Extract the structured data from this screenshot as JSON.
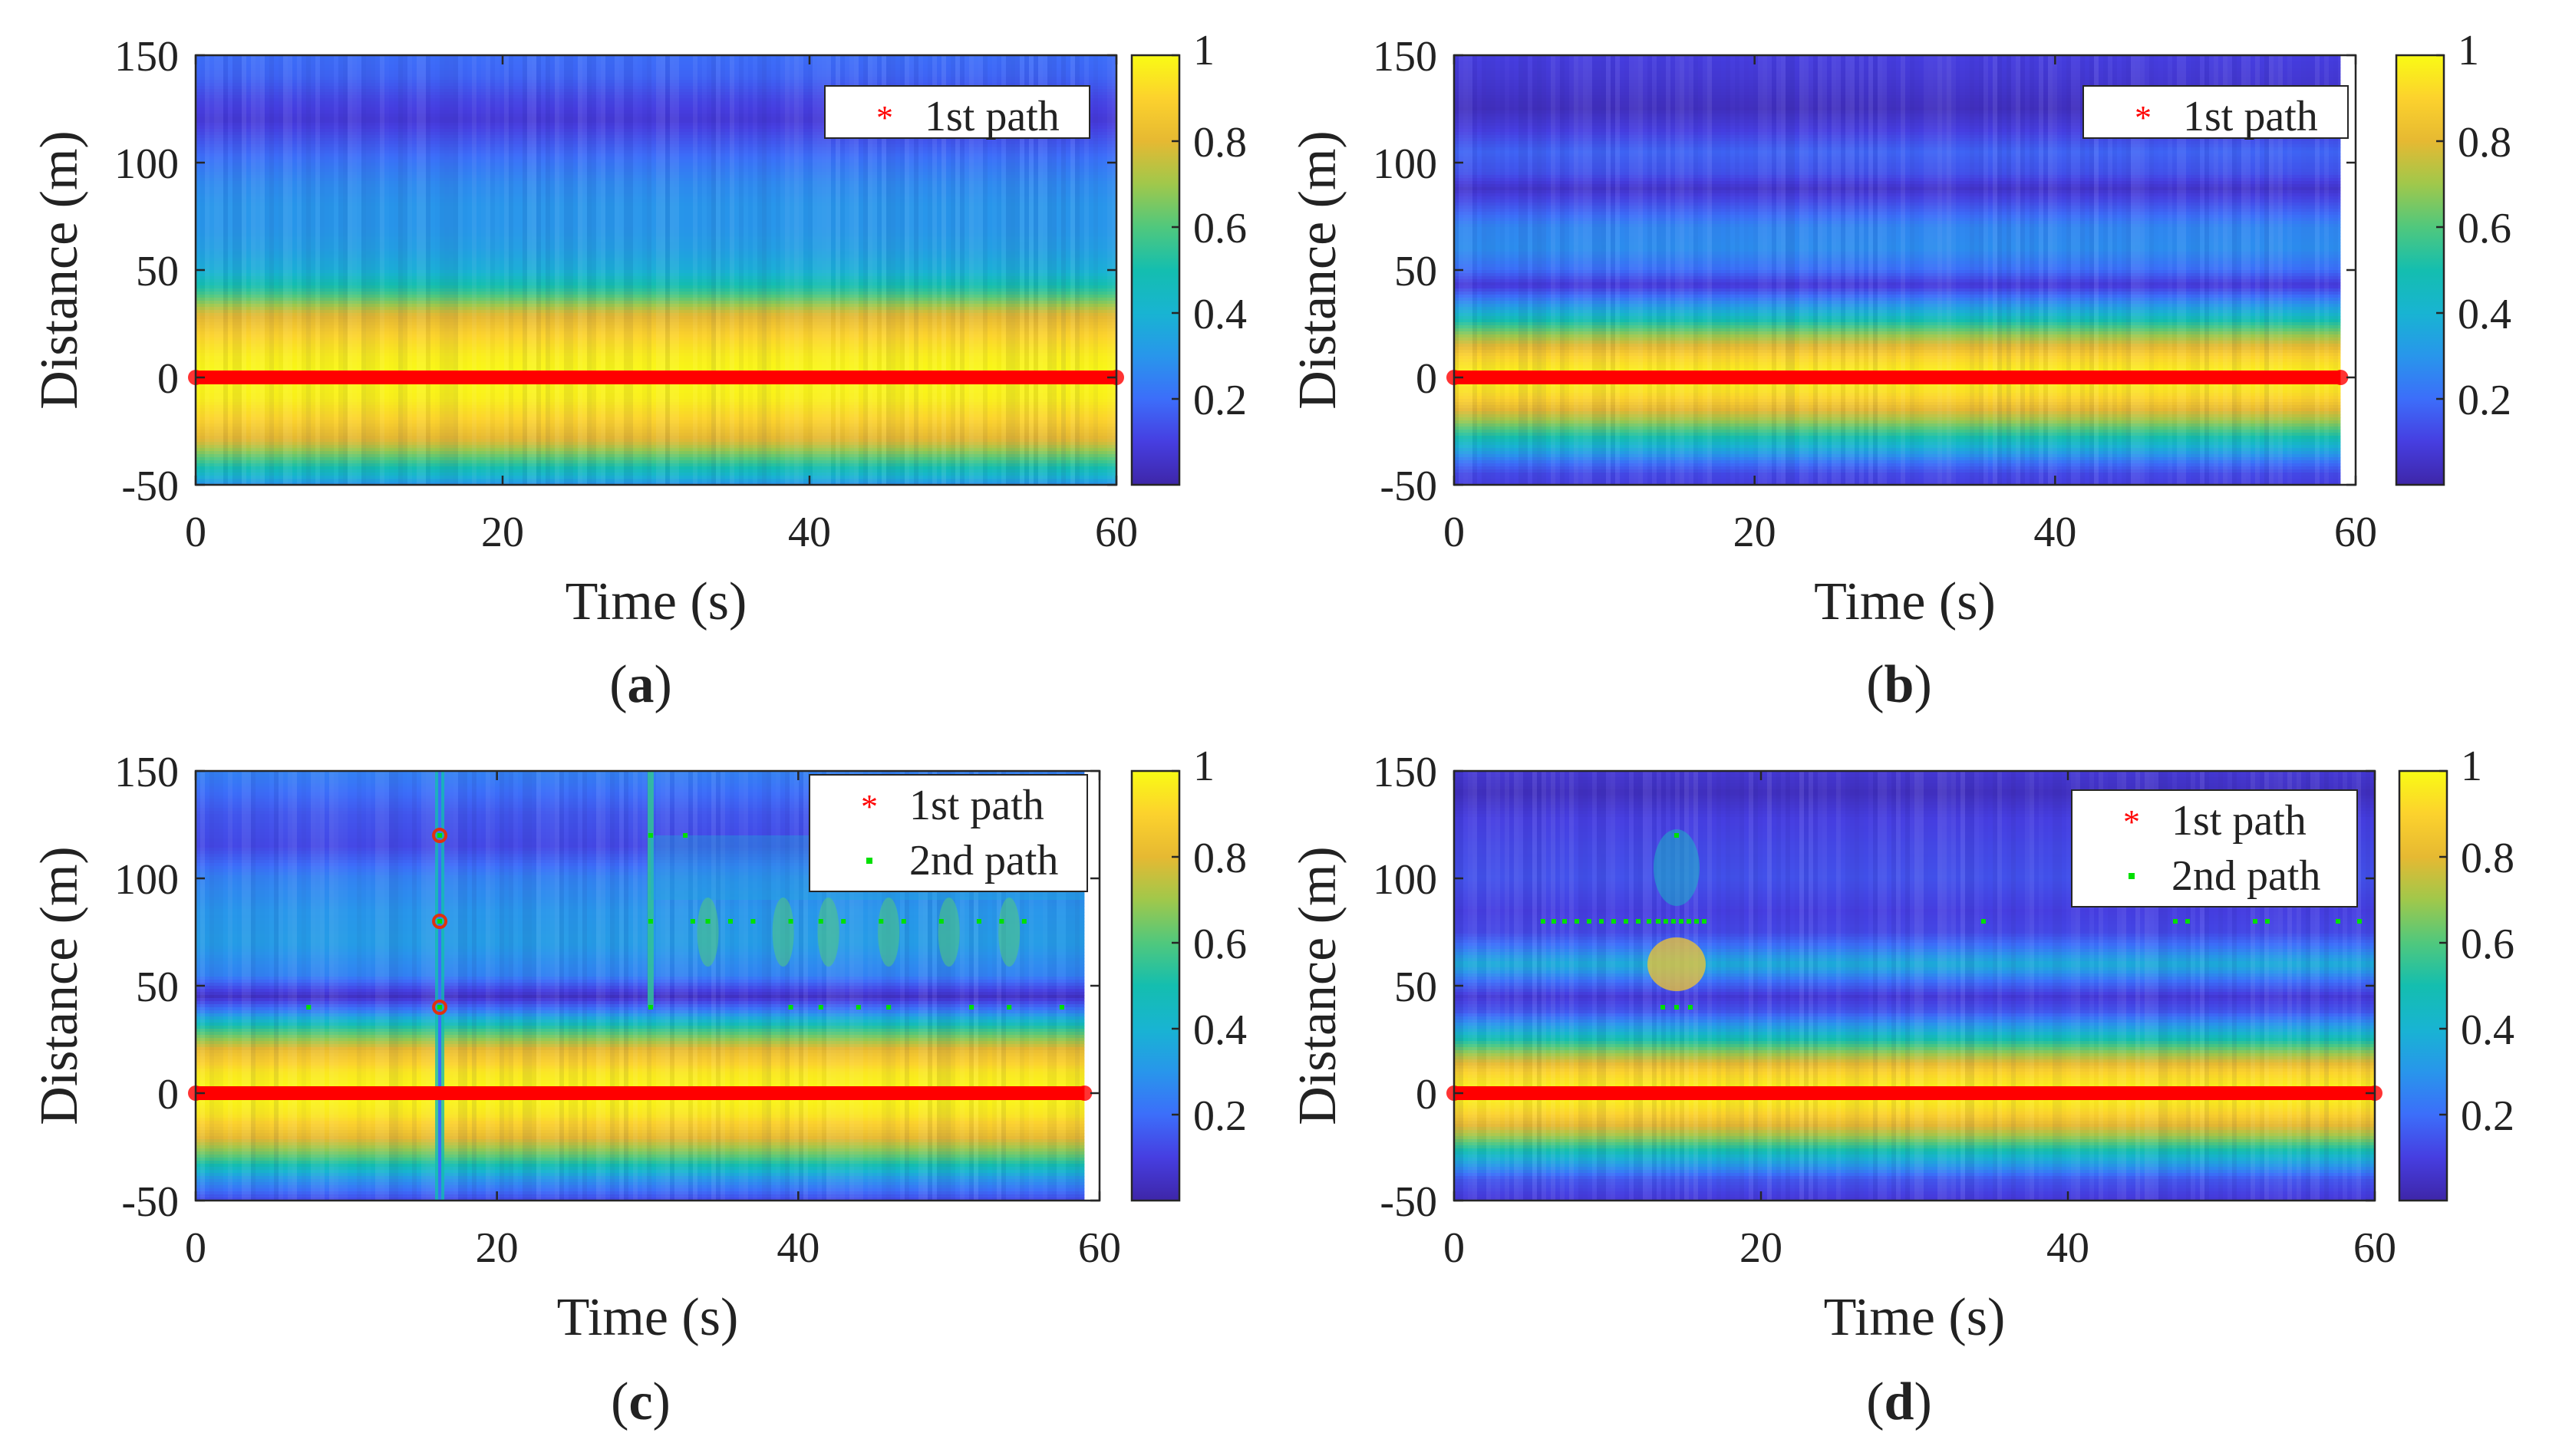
{
  "figure": {
    "bg": "#ffffff"
  },
  "chart_data": [
    {
      "id": "a",
      "type": "heatmap",
      "panel_label": "a",
      "xlabel": "Time (s)",
      "ylabel": "Distance (m)",
      "xlim": [
        0,
        60
      ],
      "ylim": [
        -50,
        150
      ],
      "xticks": [
        0,
        20,
        40,
        60
      ],
      "yticks": [
        -50,
        0,
        50,
        100,
        150
      ],
      "colorbar": {
        "range": [
          0,
          1
        ],
        "ticks": [
          0.2,
          0.4,
          0.6,
          0.8,
          1
        ],
        "tick_labels": [
          "0.2",
          "0.4",
          "0.6",
          "0.8",
          "1"
        ]
      },
      "intensity_profile": [
        {
          "d": -50,
          "v": 0.3
        },
        {
          "d": -40,
          "v": 0.55
        },
        {
          "d": -30,
          "v": 0.78
        },
        {
          "d": -20,
          "v": 0.9
        },
        {
          "d": -10,
          "v": 0.97
        },
        {
          "d": 0,
          "v": 1.0
        },
        {
          "d": 10,
          "v": 0.97
        },
        {
          "d": 20,
          "v": 0.9
        },
        {
          "d": 30,
          "v": 0.78
        },
        {
          "d": 40,
          "v": 0.55
        },
        {
          "d": 50,
          "v": 0.38
        },
        {
          "d": 60,
          "v": 0.33
        },
        {
          "d": 70,
          "v": 0.3
        },
        {
          "d": 80,
          "v": 0.3
        },
        {
          "d": 90,
          "v": 0.27
        },
        {
          "d": 100,
          "v": 0.22
        },
        {
          "d": 110,
          "v": 0.15
        },
        {
          "d": 120,
          "v": 0.08
        },
        {
          "d": 130,
          "v": 0.12
        },
        {
          "d": 140,
          "v": 0.18
        },
        {
          "d": 150,
          "v": 0.2
        }
      ],
      "time_span": [
        0,
        60
      ],
      "anomalies": [],
      "legend": [
        {
          "name": "1st path",
          "marker": "*",
          "color": "#ff0000"
        }
      ],
      "series": [
        {
          "name": "1st path",
          "marker": "*",
          "color": "#ff0000",
          "y_constant": 0,
          "x_range": [
            0,
            60
          ]
        }
      ]
    },
    {
      "id": "b",
      "type": "heatmap",
      "panel_label": "b",
      "xlabel": "Time (s)",
      "ylabel": "Distance (m)",
      "xlim": [
        0,
        60
      ],
      "ylim": [
        -50,
        150
      ],
      "xticks": [
        0,
        20,
        40,
        60
      ],
      "yticks": [
        -50,
        0,
        50,
        100,
        150
      ],
      "colorbar": {
        "range": [
          0,
          1
        ],
        "ticks": [
          0.2,
          0.4,
          0.6,
          0.8,
          1
        ],
        "tick_labels": [
          "0.2",
          "0.4",
          "0.6",
          "0.8",
          "1"
        ]
      },
      "intensity_profile": [
        {
          "d": -50,
          "v": 0.1
        },
        {
          "d": -45,
          "v": 0.12
        },
        {
          "d": -40,
          "v": 0.2
        },
        {
          "d": -30,
          "v": 0.45
        },
        {
          "d": -20,
          "v": 0.7
        },
        {
          "d": -10,
          "v": 0.9
        },
        {
          "d": 0,
          "v": 1.0
        },
        {
          "d": 10,
          "v": 0.9
        },
        {
          "d": 20,
          "v": 0.68
        },
        {
          "d": 30,
          "v": 0.4
        },
        {
          "d": 37,
          "v": 0.22
        },
        {
          "d": 43,
          "v": 0.08
        },
        {
          "d": 50,
          "v": 0.2
        },
        {
          "d": 60,
          "v": 0.28
        },
        {
          "d": 70,
          "v": 0.26
        },
        {
          "d": 80,
          "v": 0.15
        },
        {
          "d": 88,
          "v": 0.06
        },
        {
          "d": 95,
          "v": 0.14
        },
        {
          "d": 105,
          "v": 0.18
        },
        {
          "d": 115,
          "v": 0.1
        },
        {
          "d": 125,
          "v": 0.04
        },
        {
          "d": 140,
          "v": 0.08
        },
        {
          "d": 150,
          "v": 0.1
        }
      ],
      "time_span": [
        0,
        59
      ],
      "anomalies": [],
      "legend": [
        {
          "name": "1st path",
          "marker": "*",
          "color": "#ff0000"
        }
      ],
      "series": [
        {
          "name": "1st path",
          "marker": "*",
          "color": "#ff0000",
          "y_constant": 0,
          "x_range": [
            0,
            59
          ]
        }
      ]
    },
    {
      "id": "c",
      "type": "heatmap",
      "panel_label": "c",
      "xlabel": "Time (s)",
      "ylabel": "Distance (m)",
      "xlim": [
        0,
        60
      ],
      "ylim": [
        -50,
        150
      ],
      "xticks": [
        0,
        20,
        40,
        60
      ],
      "yticks": [
        -50,
        0,
        50,
        100,
        150
      ],
      "colorbar": {
        "range": [
          0,
          1
        ],
        "ticks": [
          0.2,
          0.4,
          0.6,
          0.8,
          1
        ],
        "tick_labels": [
          "0.2",
          "0.4",
          "0.6",
          "0.8",
          "1"
        ]
      },
      "intensity_profile": [
        {
          "d": -50,
          "v": 0.12
        },
        {
          "d": -40,
          "v": 0.3
        },
        {
          "d": -30,
          "v": 0.6
        },
        {
          "d": -20,
          "v": 0.82
        },
        {
          "d": -10,
          "v": 0.95
        },
        {
          "d": 0,
          "v": 1.0
        },
        {
          "d": 10,
          "v": 0.95
        },
        {
          "d": 20,
          "v": 0.82
        },
        {
          "d": 30,
          "v": 0.55
        },
        {
          "d": 38,
          "v": 0.25
        },
        {
          "d": 45,
          "v": 0.05
        },
        {
          "d": 55,
          "v": 0.25
        },
        {
          "d": 70,
          "v": 0.32
        },
        {
          "d": 85,
          "v": 0.3
        },
        {
          "d": 100,
          "v": 0.25
        },
        {
          "d": 115,
          "v": 0.12
        },
        {
          "d": 130,
          "v": 0.15
        },
        {
          "d": 150,
          "v": 0.25
        }
      ],
      "time_span": [
        0,
        59
      ],
      "anomalies": [
        {
          "t": 16.2,
          "kind": "spike"
        },
        {
          "t": 30.2,
          "kind": "step"
        },
        {
          "t": 34,
          "kind": "blob"
        },
        {
          "t": 39,
          "kind": "blob"
        },
        {
          "t": 42,
          "kind": "blob"
        },
        {
          "t": 46,
          "kind": "blob"
        },
        {
          "t": 50,
          "kind": "blob"
        },
        {
          "t": 54,
          "kind": "blob"
        }
      ],
      "legend": [
        {
          "name": "1st path",
          "marker": "*",
          "color": "#ff0000"
        },
        {
          "name": "2nd path",
          "marker": ".",
          "color": "#00e000"
        }
      ],
      "series": [
        {
          "name": "1st path",
          "marker": "*",
          "color": "#ff0000",
          "y_constant": 0,
          "x_range": [
            0,
            59
          ]
        },
        {
          "name": "2nd path",
          "marker": ".",
          "color": "#00e000",
          "points": [
            [
              7.5,
              40
            ],
            [
              16.2,
              40
            ],
            [
              16.2,
              80
            ],
            [
              16.2,
              120
            ],
            [
              30.2,
              40
            ],
            [
              30.2,
              80
            ],
            [
              30.2,
              120
            ],
            [
              32.5,
              120
            ],
            [
              33,
              80
            ],
            [
              34,
              80
            ],
            [
              35.5,
              80
            ],
            [
              37,
              80
            ],
            [
              39.5,
              80
            ],
            [
              41.5,
              80
            ],
            [
              43,
              80
            ],
            [
              45.5,
              80
            ],
            [
              47,
              80
            ],
            [
              49.5,
              80
            ],
            [
              52,
              80
            ],
            [
              53.5,
              80
            ],
            [
              55,
              80
            ],
            [
              39.5,
              40
            ],
            [
              41.5,
              40
            ],
            [
              44,
              40
            ],
            [
              46,
              40
            ],
            [
              51.5,
              40
            ],
            [
              54,
              40
            ],
            [
              57.5,
              40
            ]
          ]
        }
      ],
      "red_markers": [
        [
          16.2,
          40
        ],
        [
          16.2,
          80
        ],
        [
          16.2,
          120
        ]
      ]
    },
    {
      "id": "d",
      "type": "heatmap",
      "panel_label": "d",
      "xlabel": "Time (s)",
      "ylabel": "Distance (m)",
      "xlim": [
        0,
        60
      ],
      "ylim": [
        -50,
        150
      ],
      "xticks": [
        0,
        20,
        40,
        60
      ],
      "yticks": [
        -50,
        0,
        50,
        100,
        150
      ],
      "colorbar": {
        "range": [
          0,
          1
        ],
        "ticks": [
          0.2,
          0.4,
          0.6,
          0.8,
          1
        ],
        "tick_labels": [
          "0.2",
          "0.4",
          "0.6",
          "0.8",
          "1"
        ]
      },
      "intensity_profile": [
        {
          "d": -50,
          "v": 0.08
        },
        {
          "d": -40,
          "v": 0.15
        },
        {
          "d": -30,
          "v": 0.4
        },
        {
          "d": -20,
          "v": 0.7
        },
        {
          "d": -10,
          "v": 0.9
        },
        {
          "d": 0,
          "v": 1.0
        },
        {
          "d": 10,
          "v": 0.9
        },
        {
          "d": 20,
          "v": 0.65
        },
        {
          "d": 30,
          "v": 0.35
        },
        {
          "d": 38,
          "v": 0.15
        },
        {
          "d": 45,
          "v": 0.08
        },
        {
          "d": 52,
          "v": 0.2
        },
        {
          "d": 60,
          "v": 0.38
        },
        {
          "d": 68,
          "v": 0.22
        },
        {
          "d": 75,
          "v": 0.12
        },
        {
          "d": 85,
          "v": 0.1
        },
        {
          "d": 100,
          "v": 0.14
        },
        {
          "d": 115,
          "v": 0.12
        },
        {
          "d": 128,
          "v": 0.1
        },
        {
          "d": 140,
          "v": 0.04
        },
        {
          "d": 150,
          "v": 0.08
        }
      ],
      "time_span": [
        0,
        60
      ],
      "anomalies": [
        {
          "t": 14.5,
          "kind": "glow"
        }
      ],
      "legend": [
        {
          "name": "1st path",
          "marker": "*",
          "color": "#ff0000"
        },
        {
          "name": "2nd path",
          "marker": ".",
          "color": "#00e000"
        }
      ],
      "series": [
        {
          "name": "1st path",
          "marker": "*",
          "color": "#ff0000",
          "y_constant": 0,
          "x_range": [
            0,
            60
          ]
        },
        {
          "name": "2nd path",
          "marker": ".",
          "color": "#00e000",
          "points": [
            [
              5.8,
              80
            ],
            [
              6.5,
              80
            ],
            [
              7.2,
              80
            ],
            [
              8,
              80
            ],
            [
              8.8,
              80
            ],
            [
              9.6,
              80
            ],
            [
              10.4,
              80
            ],
            [
              11.2,
              80
            ],
            [
              12,
              80
            ],
            [
              12.7,
              80
            ],
            [
              13.3,
              80
            ],
            [
              13.8,
              80
            ],
            [
              14.3,
              80
            ],
            [
              14.8,
              80
            ],
            [
              15.3,
              80
            ],
            [
              15.8,
              80
            ],
            [
              16.3,
              80
            ],
            [
              14.5,
              120
            ],
            [
              13.6,
              40
            ],
            [
              14.5,
              40
            ],
            [
              15.4,
              40
            ],
            [
              34.5,
              80
            ],
            [
              47,
              80
            ],
            [
              47.8,
              80
            ],
            [
              52.2,
              80
            ],
            [
              53,
              80
            ],
            [
              57.6,
              80
            ],
            [
              59,
              80
            ]
          ]
        }
      ],
      "red_markers": []
    }
  ]
}
